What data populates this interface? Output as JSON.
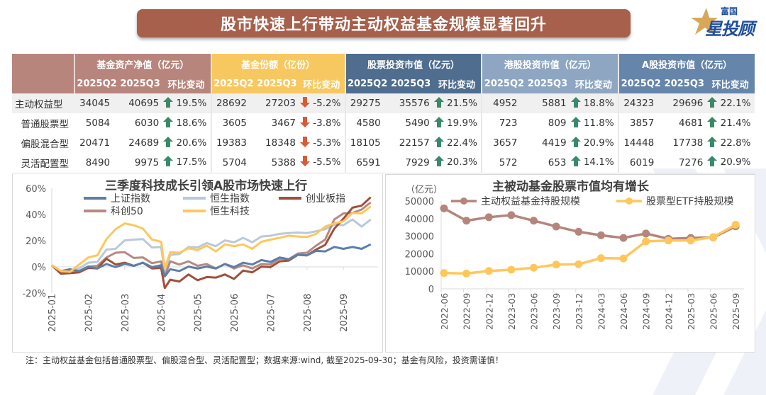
{
  "header": {
    "title": "股市快速上行带动主动权益基金规模显著回升",
    "logo_small": "富国",
    "logo_big": "星投顾"
  },
  "table": {
    "groups": [
      {
        "label": "基金资产净值（亿元）",
        "color": "#b7857c"
      },
      {
        "label": "基金份额（亿份）",
        "color": "#f8c860"
      },
      {
        "label": "股票投资市值（亿元）",
        "color": "#4f6d8e"
      },
      {
        "label": "港股投资市值（亿元）",
        "color": "#8ea6c2"
      },
      {
        "label": "A股投资市值（亿元）",
        "color": "#6685aa"
      }
    ],
    "subheaders": [
      "2025Q2",
      "2025Q3",
      "环比变动"
    ],
    "rows": [
      {
        "name": "主动权益型",
        "cells": [
          [
            "34045",
            "40695",
            "up",
            "19.5%"
          ],
          [
            "28692",
            "27203",
            "down",
            "-5.2%"
          ],
          [
            "29275",
            "35576",
            "up",
            "21.5%"
          ],
          [
            "4952",
            "5881",
            "up",
            "18.8%"
          ],
          [
            "24323",
            "29696",
            "up",
            "22.1%"
          ]
        ]
      },
      {
        "name": "普通股票型",
        "cells": [
          [
            "5084",
            "6030",
            "up",
            "18.6%"
          ],
          [
            "3605",
            "3467",
            "down",
            "-3.8%"
          ],
          [
            "4580",
            "5490",
            "up",
            "19.9%"
          ],
          [
            "723",
            "809",
            "up",
            "11.8%"
          ],
          [
            "3857",
            "4681",
            "up",
            "21.4%"
          ]
        ]
      },
      {
        "name": "偏股混合型",
        "cells": [
          [
            "20471",
            "24689",
            "up",
            "20.6%"
          ],
          [
            "19383",
            "18348",
            "down",
            "-5.3%"
          ],
          [
            "18105",
            "22157",
            "up",
            "22.4%"
          ],
          [
            "3657",
            "4419",
            "up",
            "20.9%"
          ],
          [
            "14448",
            "17738",
            "up",
            "22.8%"
          ]
        ]
      },
      {
        "name": "灵活配置型",
        "cells": [
          [
            "8490",
            "9975",
            "up",
            "17.5%"
          ],
          [
            "5704",
            "5388",
            "down",
            "-5.5%"
          ],
          [
            "6591",
            "7929",
            "up",
            "20.3%"
          ],
          [
            "572",
            "653",
            "up",
            "14.1%"
          ],
          [
            "6019",
            "7276",
            "up",
            "20.9%"
          ]
        ]
      }
    ],
    "arrow_up_glyph": "🡅",
    "arrow_down_glyph": "🡇",
    "up_color": "#3a8a6a",
    "down_color": "#d95b35"
  },
  "chart_data": [
    {
      "type": "line",
      "title": "三季度科技成长引领A股市场快速上行",
      "xlabel": "",
      "ylabel": "",
      "ylim": [
        -20,
        60
      ],
      "yticks": [
        "-20%",
        "0%",
        "20%",
        "40%",
        "60%"
      ],
      "ytick_values": [
        -20,
        0,
        20,
        40,
        60
      ],
      "xticks": [
        "2025-01",
        "2025-02",
        "2025-03",
        "2025-04",
        "2025-05",
        "2025-06",
        "2025-07",
        "2025-08",
        "2025-09"
      ],
      "legend_position": "top",
      "x_points_months": [
        0,
        0.25,
        0.5,
        0.75,
        1,
        1.25,
        1.5,
        1.75,
        2,
        2.25,
        2.5,
        2.75,
        3,
        3.1,
        3.25,
        3.5,
        3.75,
        4,
        4.25,
        4.5,
        4.75,
        5,
        5.25,
        5.5,
        5.75,
        6,
        6.25,
        6.5,
        6.75,
        7,
        7.25,
        7.5,
        7.75,
        8,
        8.25,
        8.5,
        8.75
      ],
      "series": [
        {
          "name": "上证指数",
          "color": "#5b7fa8",
          "values": [
            0,
            -2,
            -3,
            -2,
            -1,
            0,
            1,
            1,
            1,
            2,
            2,
            1,
            0,
            -6,
            -3,
            -2,
            -1,
            0,
            -1,
            0,
            1,
            1,
            2,
            3,
            4,
            5,
            6,
            7,
            8,
            10,
            11,
            13,
            14,
            15,
            14,
            15,
            16
          ]
        },
        {
          "name": "恒生指数",
          "color": "#b9c9db",
          "values": [
            0,
            -3,
            -4,
            0,
            2,
            5,
            12,
            15,
            19,
            22,
            20,
            16,
            14,
            -3,
            8,
            11,
            14,
            16,
            17,
            17,
            19,
            20,
            21,
            20,
            22,
            25,
            24,
            27,
            25,
            27,
            26,
            30,
            31,
            33,
            35,
            32,
            35
          ]
        },
        {
          "name": "创业板指",
          "color": "#a0503a",
          "values": [
            0,
            -4,
            -6,
            -3,
            -2,
            0,
            5,
            3,
            2,
            2,
            2,
            0,
            -2,
            -15,
            -11,
            -10,
            -7,
            -9,
            -9,
            -7,
            -7,
            -8,
            -4,
            -3,
            -1,
            1,
            3,
            6,
            8,
            10,
            12,
            18,
            28,
            38,
            44,
            48,
            52
          ]
        },
        {
          "name": "科创50",
          "color": "#b68a80",
          "values": [
            0,
            -3,
            -4,
            -2,
            -1,
            2,
            6,
            12,
            10,
            8,
            6,
            4,
            3,
            -6,
            3,
            3,
            3,
            2,
            1,
            0,
            1,
            0,
            0,
            0,
            1,
            3,
            5,
            7,
            9,
            12,
            15,
            22,
            35,
            42,
            40,
            45,
            48
          ]
        },
        {
          "name": "恒生科技",
          "color": "#ffc75a",
          "values": [
            0,
            -2,
            -5,
            3,
            6,
            10,
            20,
            30,
            32,
            33,
            28,
            22,
            18,
            0,
            10,
            12,
            13,
            14,
            15,
            13,
            16,
            17,
            16,
            15,
            18,
            22,
            21,
            25,
            22,
            24,
            24,
            32,
            32,
            36,
            40,
            42,
            45
          ]
        }
      ]
    },
    {
      "type": "line",
      "title": "主被动基金股票市值均有增长",
      "ylabel": "（亿元）",
      "xlabel": "",
      "ylim": [
        0,
        50000
      ],
      "yticks": [
        "0",
        "10000",
        "20000",
        "30000",
        "40000",
        "50000"
      ],
      "ytick_values": [
        0,
        10000,
        20000,
        30000,
        40000,
        50000
      ],
      "categories": [
        "2022-06",
        "2022-09",
        "2022-12",
        "2023-03",
        "2023-06",
        "2023-09",
        "2023-12",
        "2024-03",
        "2024-06",
        "2024-09",
        "2024-12",
        "2025-03",
        "2025-06",
        "2025-09"
      ],
      "legend_position": "top",
      "series": [
        {
          "name": "主动权益基金持股规模",
          "color": "#b5857b",
          "values": [
            45800,
            38800,
            40800,
            42000,
            38800,
            35500,
            32500,
            30500,
            29000,
            31500,
            28500,
            29000,
            29275,
            35576
          ]
        },
        {
          "name": "股票型ETF持股规模",
          "color": "#ffc75a",
          "values": [
            9000,
            8700,
            10200,
            10900,
            12000,
            13800,
            14000,
            17500,
            17300,
            27000,
            27500,
            27500,
            29500,
            36500
          ]
        }
      ]
    }
  ],
  "footnote": "注：主动权益基金包括普通股票型、偏股混合型、灵活配置型；数据来源:wind, 截至2025-09-30；基金有风险，投资需谨慎！"
}
